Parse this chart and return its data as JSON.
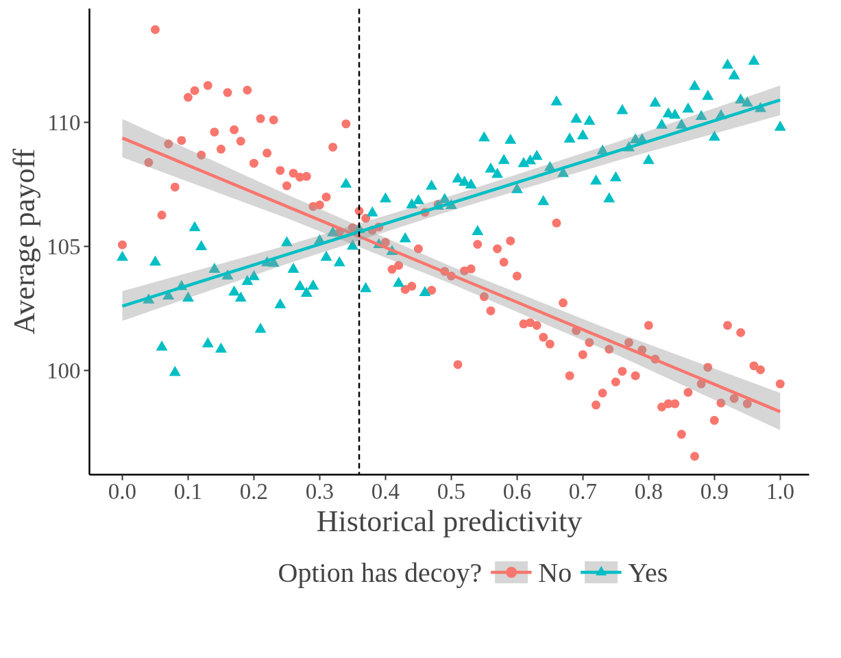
{
  "chart_data": {
    "type": "scatter",
    "xlabel": "Historical predictivity",
    "ylabel": "Average payoff",
    "legend_title": "Option has decoy?",
    "legend": "bottom",
    "grid": false,
    "xlim": [
      -0.05,
      1.044
    ],
    "xticks": [
      {
        "value": 0,
        "label": "0.0"
      },
      0.1,
      0.2,
      0.3,
      0.4,
      0.5,
      0.6,
      0.7,
      0.8,
      0.9,
      {
        "value": 1,
        "label": "1.0"
      }
    ],
    "ylim": [
      95.8,
      114.6
    ],
    "yticks": [
      100,
      105,
      110
    ],
    "ref_lines": [
      {
        "axis": "x",
        "value": 0.36,
        "color": "#000000",
        "line_style": "dashed"
      }
    ],
    "series": [
      {
        "name": "No",
        "marker": "circle",
        "color": "#f8766d",
        "x": [
          0.0,
          0.04,
          0.05,
          0.06,
          0.07,
          0.08,
          0.09,
          0.1,
          0.11,
          0.12,
          0.13,
          0.14,
          0.15,
          0.16,
          0.17,
          0.18,
          0.19,
          0.2,
          0.21,
          0.22,
          0.23,
          0.24,
          0.25,
          0.26,
          0.27,
          0.28,
          0.29,
          0.3,
          0.31,
          0.32,
          0.33,
          0.34,
          0.35,
          0.36,
          0.37,
          0.38,
          0.39,
          0.4,
          0.41,
          0.42,
          0.43,
          0.44,
          0.45,
          0.46,
          0.47,
          0.48,
          0.49,
          0.5,
          0.51,
          0.52,
          0.53,
          0.54,
          0.55,
          0.56,
          0.57,
          0.58,
          0.59,
          0.6,
          0.61,
          0.62,
          0.63,
          0.64,
          0.65,
          0.66,
          0.67,
          0.68,
          0.69,
          0.7,
          0.71,
          0.72,
          0.73,
          0.74,
          0.75,
          0.76,
          0.77,
          0.78,
          0.79,
          0.8,
          0.81,
          0.82,
          0.83,
          0.84,
          0.85,
          0.86,
          0.87,
          0.88,
          0.89,
          0.9,
          0.91,
          0.92,
          0.93,
          0.94,
          0.95,
          0.96,
          0.97,
          1.0
        ],
        "values": [
          105.07,
          108.39,
          113.75,
          106.27,
          109.14,
          107.4,
          109.28,
          111.02,
          111.29,
          108.69,
          111.5,
          109.62,
          108.93,
          111.21,
          109.71,
          109.25,
          111.31,
          108.36,
          110.16,
          108.77,
          110.11,
          108.07,
          107.45,
          107.96,
          107.8,
          107.83,
          106.62,
          106.68,
          107.0,
          109.01,
          105.58,
          109.95,
          105.76,
          106.43,
          106.14,
          105.66,
          105.79,
          105.17,
          104.08,
          104.24,
          103.27,
          103.4,
          104.91,
          106.38,
          103.24,
          106.7,
          104.0,
          103.81,
          100.24,
          104.02,
          104.1,
          105.09,
          102.98,
          102.41,
          104.91,
          104.37,
          105.23,
          103.81,
          101.88,
          101.93,
          101.82,
          101.34,
          101.07,
          105.95,
          102.73,
          99.79,
          101.61,
          100.64,
          101.13,
          98.61,
          99.09,
          100.86,
          99.54,
          99.97,
          101.13,
          99.79,
          100.83,
          101.82,
          100.46,
          98.53,
          98.66,
          98.66,
          97.43,
          99.12,
          96.54,
          99.46,
          100.13,
          97.99,
          98.69,
          101.82,
          98.87,
          101.53,
          98.66,
          100.19,
          100.03,
          99.46
        ]
      },
      {
        "name": "Yes",
        "marker": "triangle",
        "color": "#00bfc4",
        "x": [
          0.0,
          0.04,
          0.05,
          0.06,
          0.07,
          0.08,
          0.09,
          0.1,
          0.11,
          0.12,
          0.13,
          0.14,
          0.15,
          0.16,
          0.17,
          0.18,
          0.19,
          0.2,
          0.21,
          0.22,
          0.23,
          0.24,
          0.25,
          0.26,
          0.27,
          0.28,
          0.29,
          0.3,
          0.31,
          0.32,
          0.33,
          0.34,
          0.35,
          0.36,
          0.37,
          0.38,
          0.39,
          0.4,
          0.41,
          0.42,
          0.43,
          0.44,
          0.45,
          0.46,
          0.47,
          0.48,
          0.49,
          0.5,
          0.51,
          0.52,
          0.53,
          0.54,
          0.55,
          0.56,
          0.57,
          0.58,
          0.59,
          0.6,
          0.61,
          0.62,
          0.63,
          0.64,
          0.65,
          0.66,
          0.67,
          0.68,
          0.69,
          0.7,
          0.71,
          0.72,
          0.73,
          0.74,
          0.75,
          0.76,
          0.77,
          0.78,
          0.79,
          0.8,
          0.81,
          0.82,
          0.83,
          0.84,
          0.85,
          0.86,
          0.87,
          0.88,
          0.89,
          0.9,
          0.91,
          0.92,
          0.93,
          0.94,
          0.95,
          0.96,
          0.97,
          1.0
        ],
        "values": [
          104.56,
          102.84,
          104.37,
          100.94,
          103.0,
          99.92,
          103.38,
          102.92,
          105.76,
          104.99,
          101.07,
          104.08,
          100.86,
          103.81,
          103.16,
          102.92,
          103.59,
          103.78,
          101.66,
          104.34,
          104.32,
          102.65,
          105.15,
          104.08,
          103.38,
          103.11,
          103.4,
          105.23,
          104.56,
          105.55,
          104.34,
          107.51,
          105.01,
          105.68,
          103.3,
          106.35,
          105.07,
          106.92,
          104.8,
          103.51,
          105.31,
          106.68,
          106.84,
          103.14,
          107.43,
          106.62,
          106.89,
          106.65,
          107.72,
          107.59,
          107.48,
          105.6,
          109.38,
          108.12,
          107.91,
          108.47,
          109.28,
          107.29,
          108.34,
          108.45,
          108.63,
          106.81,
          108.18,
          110.83,
          107.94,
          109.33,
          110.13,
          109.46,
          110.05,
          107.64,
          108.85,
          106.92,
          107.77,
          110.48,
          108.98,
          109.3,
          109.3,
          108.47,
          110.78,
          109.89,
          110.35,
          110.29,
          109.89,
          110.54,
          111.45,
          110.24,
          111.05,
          109.41,
          110.27,
          112.31,
          111.88,
          110.91,
          110.78,
          112.47,
          110.56,
          109.81
        ]
      },
      {
        "type": "line",
        "color": "#f8766d",
        "x": [
          0,
          0.25,
          0.5,
          0.75,
          1
        ],
        "values": [
          109.38,
          106.62,
          103.86,
          101.1,
          98.34
        ],
        "lower": [
          108.6,
          106.15,
          103.5,
          100.65,
          97.6
        ],
        "upper": [
          110.15,
          107.1,
          104.2,
          101.55,
          99.1
        ]
      },
      {
        "type": "line",
        "color": "#00bfc4",
        "x": [
          0,
          0.25,
          0.5,
          0.75,
          1
        ],
        "values": [
          102.6,
          104.68,
          106.76,
          108.83,
          110.91
        ],
        "lower": [
          102.0,
          104.3,
          106.45,
          108.45,
          110.3
        ],
        "upper": [
          103.2,
          105.05,
          107.05,
          109.2,
          111.5
        ]
      }
    ]
  }
}
